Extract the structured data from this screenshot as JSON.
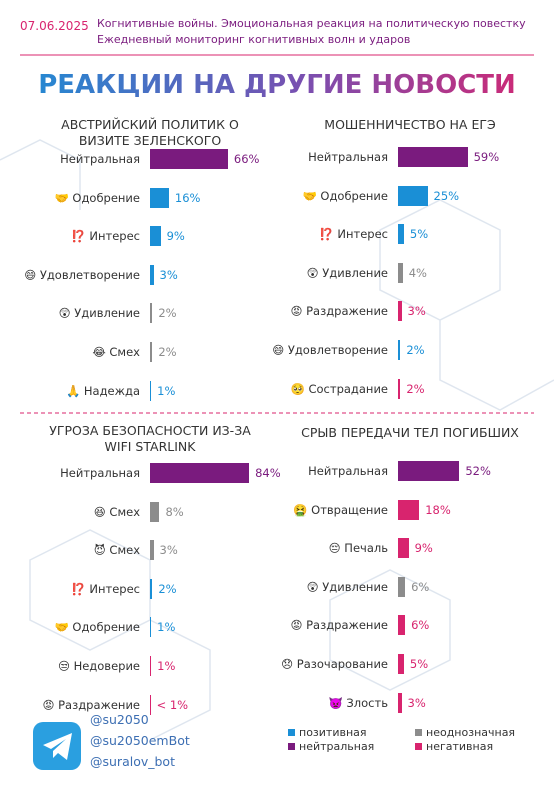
{
  "header": {
    "date": "07.06.2025",
    "line1": "Когнитивные войны. Эмоциональная реакция на политическую повестку",
    "line2": "Ежедневный мониторинг когнитивных волн и ударов"
  },
  "title": "РЕАКЦИИ НА ДРУГИЕ НОВОСТИ",
  "chart_data": [
    {
      "type": "bar",
      "title": "АВСТРИЙСКИЙ ПОЛИТИК О ВИЗИТЕ ЗЕЛЕНСКОГО",
      "categories": [
        "Нейтральная",
        "🤝 Одобрение",
        "⁉️ Интерес",
        "😄 Удовлетворение",
        "😲 Удивление",
        "😂 Смех",
        "🙏 Надежда"
      ],
      "values": [
        66,
        16,
        9,
        3,
        2,
        2,
        1
      ],
      "value_labels": [
        "66%",
        "16%",
        "9%",
        "3%",
        "2%",
        "2%",
        "1%"
      ],
      "colors": [
        "#7a1b7e",
        "#1a8fd6",
        "#1a8fd6",
        "#1a8fd6",
        "#8c8c8c",
        "#8c8c8c",
        "#1a8fd6"
      ]
    },
    {
      "type": "bar",
      "title": "МОШЕННИЧЕСТВО НА ЕГЭ",
      "categories": [
        "Нейтральная",
        "🤝 Одобрение",
        "⁉️ Интерес",
        "😲 Удивление",
        "😡 Раздражение",
        "😄 Удовлетворение",
        "🥺 Сострадание"
      ],
      "values": [
        59,
        25,
        5,
        4,
        3,
        2,
        2
      ],
      "value_labels": [
        "59%",
        "25%",
        "5%",
        "4%",
        "3%",
        "2%",
        "2%"
      ],
      "colors": [
        "#7a1b7e",
        "#1a8fd6",
        "#1a8fd6",
        "#8c8c8c",
        "#d8246e",
        "#1a8fd6",
        "#d8246e"
      ]
    },
    {
      "type": "bar",
      "title": "УГРОЗА БЕЗОПАСНОСТИ ИЗ-ЗА WIFI STARLINK",
      "categories": [
        "Нейтральная",
        "😆 Смех",
        "😈 Смех",
        "⁉️ Интерес",
        "🤝 Одобрение",
        "😒 Недоверие",
        "😡 Раздражение"
      ],
      "values": [
        84,
        8,
        3,
        2,
        1,
        1,
        0.5
      ],
      "value_labels": [
        "84%",
        "8%",
        "3%",
        "2%",
        "1%",
        "1%",
        "< 1%"
      ],
      "colors": [
        "#7a1b7e",
        "#8c8c8c",
        "#8c8c8c",
        "#1a8fd6",
        "#1a8fd6",
        "#d8246e",
        "#d8246e"
      ]
    },
    {
      "type": "bar",
      "title": "СРЫВ ПЕРЕДАЧИ ТЕЛ ПОГИБШИХ",
      "categories": [
        "Нейтральная",
        "🤮 Отвращение",
        "😔 Печаль",
        "😲 Удивление",
        "😡 Раздражение",
        "😞 Разочарование",
        "👿 Злость"
      ],
      "values": [
        52,
        18,
        9,
        6,
        6,
        5,
        3
      ],
      "value_labels": [
        "52%",
        "18%",
        "9%",
        "6%",
        "6%",
        "5%",
        "3%"
      ],
      "colors": [
        "#7a1b7e",
        "#d8246e",
        "#d8246e",
        "#8c8c8c",
        "#d8246e",
        "#d8246e",
        "#d8246e"
      ]
    }
  ],
  "legend": [
    {
      "name": "позитивная",
      "color": "#1a8fd6"
    },
    {
      "name": "неоднозначная",
      "color": "#8c8c8c"
    },
    {
      "name": "нейтральная",
      "color": "#7a1b7e"
    },
    {
      "name": "негативная",
      "color": "#d8246e"
    }
  ],
  "footer": {
    "handles": [
      "@su2050",
      "@su2050emBot",
      "@suralov_bot"
    ]
  }
}
